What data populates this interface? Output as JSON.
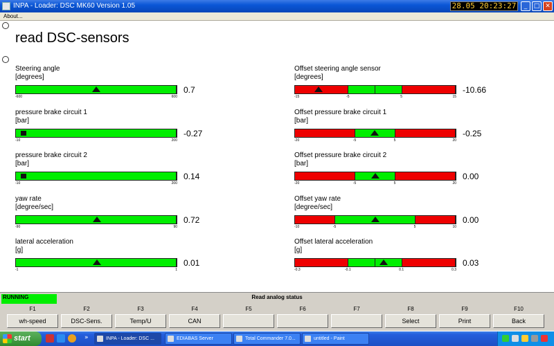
{
  "window": {
    "title": "INPA - Loader:  DSC MK60 Version 1.05",
    "clock": "28.05 20:23:27"
  },
  "menu": {
    "about": "About..."
  },
  "page": {
    "title": "read DSC-sensors"
  },
  "colors": {
    "ok": "#00ee00",
    "bad": "#ee0000"
  },
  "sensors_left": [
    {
      "name": "Steering angle",
      "unit": "[degrees]",
      "value": "0.7",
      "min": -600,
      "max": 600,
      "reading": 0.7,
      "ticks": [
        "-600",
        "600"
      ],
      "zones": [
        {
          "from": -600,
          "to": 600,
          "color": "green"
        }
      ],
      "pointer": "triangle"
    },
    {
      "name": "pressure brake circuit 1",
      "unit": "[bar]",
      "value": "-0.27",
      "min": -10,
      "max": 200,
      "reading": -0.27,
      "ticks": [
        "-10",
        "200"
      ],
      "zones": [
        {
          "from": -10,
          "to": 200,
          "color": "green"
        }
      ],
      "pointer": "block"
    },
    {
      "name": "pressure brake circuit 2",
      "unit": "[bar]",
      "value": "0.14",
      "min": -10,
      "max": 200,
      "reading": 0.14,
      "ticks": [
        "-10",
        "200"
      ],
      "zones": [
        {
          "from": -10,
          "to": 200,
          "color": "green"
        }
      ],
      "pointer": "block"
    },
    {
      "name": "yaw rate",
      "unit": "[degree/sec]",
      "value": "0.72",
      "min": -90,
      "max": 90,
      "reading": 0.72,
      "ticks": [
        "-90",
        "90"
      ],
      "zones": [
        {
          "from": -90,
          "to": 90,
          "color": "green"
        }
      ],
      "pointer": "triangle"
    },
    {
      "name": "lateral acceleration",
      "unit": "[g]",
      "value": "0.01",
      "min": -1,
      "max": 1,
      "reading": 0.01,
      "ticks": [
        "-1",
        "1"
      ],
      "zones": [
        {
          "from": -1,
          "to": 1,
          "color": "green"
        }
      ],
      "pointer": "triangle"
    }
  ],
  "sensors_right": [
    {
      "name": "Offset steering angle sensor",
      "unit": "[degrees]",
      "value": "-10.66",
      "min": -15,
      "max": 15,
      "reading": -10.66,
      "ticks": [
        "-15",
        "-5",
        "5",
        "15"
      ],
      "zones": [
        {
          "from": -15,
          "to": -5,
          "color": "red"
        },
        {
          "from": -5,
          "to": 0,
          "color": "green"
        },
        {
          "from": 0,
          "to": 5,
          "color": "green"
        },
        {
          "from": 5,
          "to": 15,
          "color": "red"
        }
      ],
      "pointer": "triangle"
    },
    {
      "name": "Offset pressure brake circuit 1",
      "unit": "[bar]",
      "value": "-0.25",
      "min": -20,
      "max": 20,
      "reading": -0.25,
      "ticks": [
        "-20",
        "-5",
        "5",
        "20"
      ],
      "zones": [
        {
          "from": -20,
          "to": -5,
          "color": "red"
        },
        {
          "from": -5,
          "to": 5,
          "color": "green"
        },
        {
          "from": 5,
          "to": 20,
          "color": "red"
        }
      ],
      "pointer": "triangle"
    },
    {
      "name": "Offset pressure brake circuit 2",
      "unit": "[bar]",
      "value": "0.00",
      "min": -20,
      "max": 20,
      "reading": 0.0,
      "ticks": [
        "-20",
        "-5",
        "5",
        "20"
      ],
      "zones": [
        {
          "from": -20,
          "to": -5,
          "color": "red"
        },
        {
          "from": -5,
          "to": 5,
          "color": "green"
        },
        {
          "from": 5,
          "to": 20,
          "color": "red"
        }
      ],
      "pointer": "triangle"
    },
    {
      "name": "Offset yaw rate",
      "unit": "[degree/sec]",
      "value": "0.00",
      "min": -10,
      "max": 10,
      "reading": 0.0,
      "ticks": [
        "-10",
        "-5",
        "5",
        "10"
      ],
      "zones": [
        {
          "from": -10,
          "to": -5,
          "color": "red"
        },
        {
          "from": -5,
          "to": 5,
          "color": "green"
        },
        {
          "from": 5,
          "to": 10,
          "color": "red"
        }
      ],
      "pointer": "triangle"
    },
    {
      "name": "Offset lateral acceleration",
      "unit": "[g]",
      "value": "0.03",
      "min": -0.3,
      "max": 0.3,
      "reading": 0.03,
      "ticks": [
        "-0.3",
        "-0.1",
        "0.1",
        "0.3"
      ],
      "zones": [
        {
          "from": -0.3,
          "to": -0.1,
          "color": "red"
        },
        {
          "from": -0.1,
          "to": 0,
          "color": "green"
        },
        {
          "from": 0,
          "to": 0.1,
          "color": "green"
        },
        {
          "from": 0.1,
          "to": 0.3,
          "color": "red"
        }
      ],
      "pointer": "triangle"
    }
  ],
  "status": {
    "state": "RUNNING",
    "title": "Read analog status"
  },
  "fkeys": [
    {
      "key": "F1",
      "label": "wh-speed"
    },
    {
      "key": "F2",
      "label": "DSC-Sens."
    },
    {
      "key": "F3",
      "label": "Temp/U"
    },
    {
      "key": "F4",
      "label": "CAN"
    },
    {
      "key": "F5",
      "label": ""
    },
    {
      "key": "F6",
      "label": ""
    },
    {
      "key": "F7",
      "label": ""
    },
    {
      "key": "F8",
      "label": "Select"
    },
    {
      "key": "F9",
      "label": "Print"
    },
    {
      "key": "F10",
      "label": "Back"
    }
  ],
  "taskbar": {
    "start": "start",
    "tasks": [
      {
        "label": "INPA - Loader:  DSC ...",
        "active": true
      },
      {
        "label": "EDIABAS Server",
        "active": false
      },
      {
        "label": "Total Commander 7.0...",
        "active": false
      },
      {
        "label": "untitled - Paint",
        "active": false
      }
    ]
  }
}
